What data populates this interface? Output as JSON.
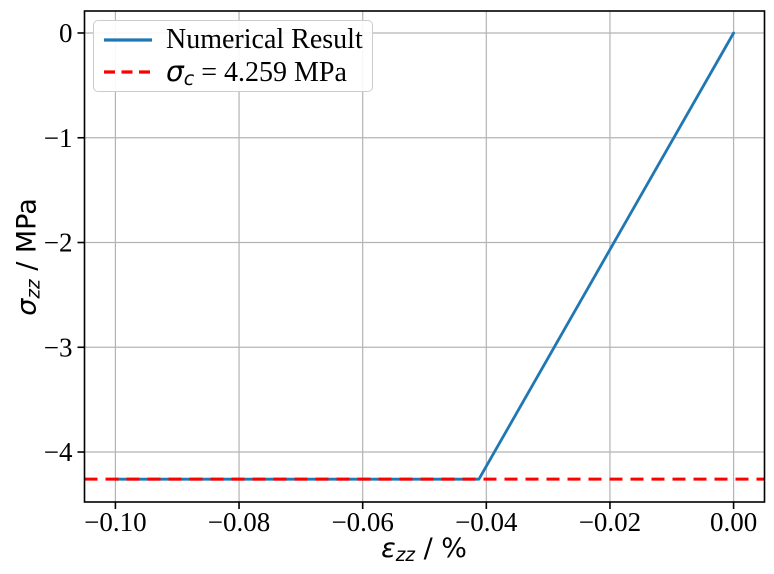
{
  "figure": {
    "background": "#ffffff"
  },
  "chart_data": {
    "type": "line",
    "title": "",
    "xlabel": "ε_zz / %",
    "ylabel": "σ_zz / MPa",
    "xlabel_parts": {
      "symbol": "ε",
      "subscript": "zz",
      "suffix": " / %"
    },
    "ylabel_parts": {
      "symbol": "σ",
      "subscript": "zz",
      "suffix": " / MPa"
    },
    "xlim": [
      -0.105,
      0.005
    ],
    "ylim": [
      -4.477,
      0.21
    ],
    "xticks": [
      -0.1,
      -0.08,
      -0.06,
      -0.04,
      -0.02,
      0.0
    ],
    "xtick_labels": [
      "−0.10",
      "−0.08",
      "−0.06",
      "−0.04",
      "−0.02",
      "0.00"
    ],
    "yticks": [
      0,
      -1,
      -2,
      -3,
      -4
    ],
    "ytick_labels": [
      "0",
      "−1",
      "−2",
      "−3",
      "−4"
    ],
    "grid": true,
    "grid_color": "#b4b4b4",
    "spine_color": "#000000",
    "legend_position": "upper left",
    "series": [
      {
        "name": "Numerical Result",
        "color": "#1f77b4",
        "style": "solid",
        "kind": "line",
        "x": [
          -0.1,
          -0.0412,
          0.0
        ],
        "y": [
          -4.259,
          -4.259,
          0.0
        ]
      },
      {
        "name": "σ_c = 4.259 MPa",
        "color": "#ff0000",
        "style": "dashed",
        "kind": "hline",
        "y_value": -4.259
      }
    ]
  },
  "legend": {
    "entries": [
      {
        "label": "Numerical Result"
      },
      {
        "symbol": "σ",
        "subscript": "c",
        "rest": " = 4.259 MPa"
      }
    ]
  }
}
